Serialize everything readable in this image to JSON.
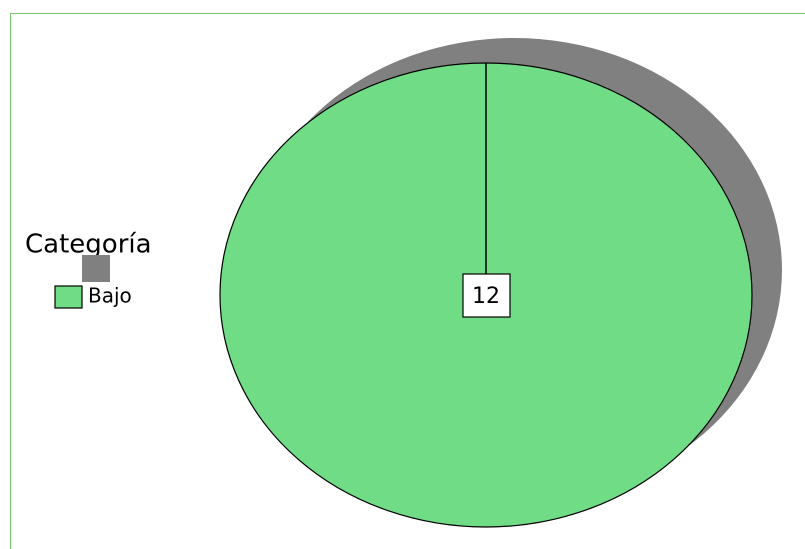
{
  "chart_data": {
    "type": "pie",
    "legend_title": "Categoría",
    "categories": [
      "Bajo"
    ],
    "values": [
      12
    ],
    "colors": [
      "#70dc86"
    ],
    "legend": "left"
  }
}
